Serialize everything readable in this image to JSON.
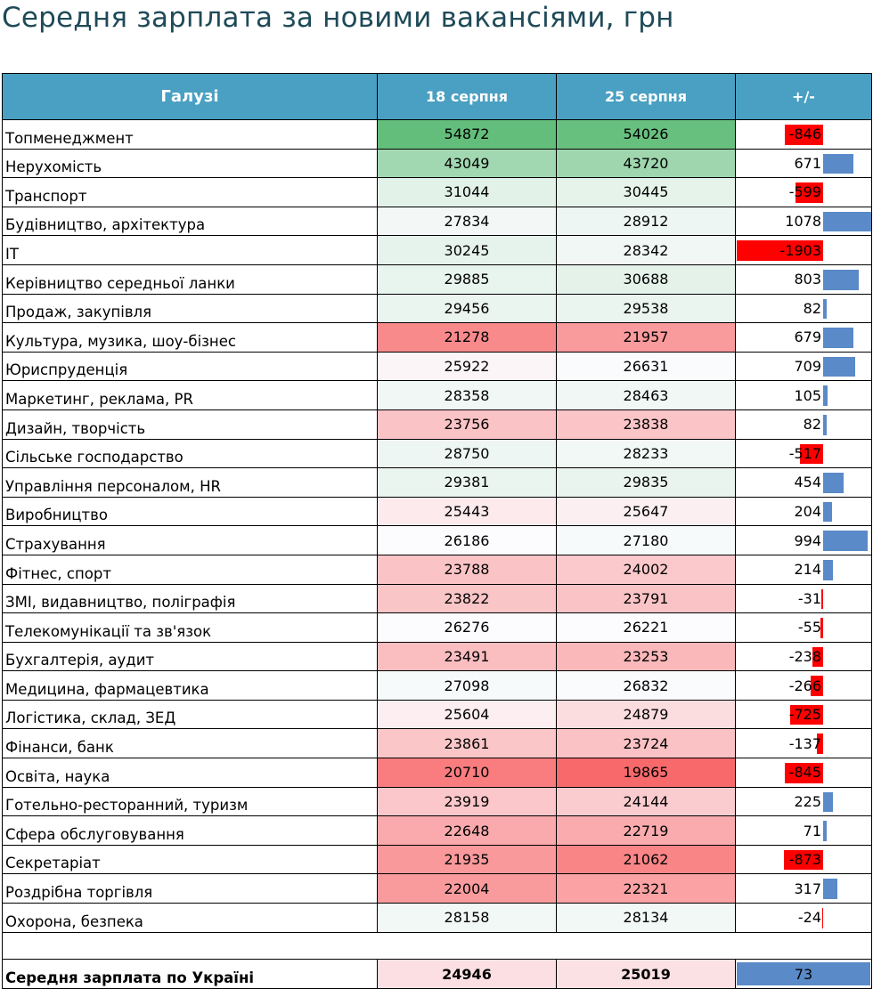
{
  "title": "Середня зарплата за новими вакансіями, грн",
  "colors": {
    "title": "#1f4a58",
    "header_bg": "#4aa0c2",
    "header_text": "#ffffff",
    "high": "#63be7b",
    "mid": "#fcfcff",
    "low": "#f8696b",
    "bar_positive": "#5a8ac8",
    "bar_negative": "#ff0000"
  },
  "chart_data": {
    "type": "table",
    "columns": [
      "Галузі",
      "18 серпня",
      "25 серпня",
      "+/-"
    ],
    "rows": [
      {
        "industry": "Топменеджмент",
        "aug18": 54872,
        "aug25": 54026,
        "delta": -846
      },
      {
        "industry": "Нерухомість",
        "aug18": 43049,
        "aug25": 43720,
        "delta": 671
      },
      {
        "industry": "Транспорт",
        "aug18": 31044,
        "aug25": 30445,
        "delta": -599
      },
      {
        "industry": "Будівництво, архітектура",
        "aug18": 27834,
        "aug25": 28912,
        "delta": 1078
      },
      {
        "industry": "IT",
        "aug18": 30245,
        "aug25": 28342,
        "delta": -1903
      },
      {
        "industry": "Керівництво середньої ланки",
        "aug18": 29885,
        "aug25": 30688,
        "delta": 803
      },
      {
        "industry": "Продаж, закупівля",
        "aug18": 29456,
        "aug25": 29538,
        "delta": 82
      },
      {
        "industry": "Культура, музика, шоу-бізнес",
        "aug18": 21278,
        "aug25": 21957,
        "delta": 679
      },
      {
        "industry": "Юриспруденція",
        "aug18": 25922,
        "aug25": 26631,
        "delta": 709
      },
      {
        "industry": "Маркетинг, реклама, PR",
        "aug18": 28358,
        "aug25": 28463,
        "delta": 105
      },
      {
        "industry": "Дизайн, творчість",
        "aug18": 23756,
        "aug25": 23838,
        "delta": 82
      },
      {
        "industry": "Сільське господарство",
        "aug18": 28750,
        "aug25": 28233,
        "delta": -517
      },
      {
        "industry": "Управління персоналом, HR",
        "aug18": 29381,
        "aug25": 29835,
        "delta": 454
      },
      {
        "industry": "Виробництво",
        "aug18": 25443,
        "aug25": 25647,
        "delta": 204
      },
      {
        "industry": "Страхування",
        "aug18": 26186,
        "aug25": 27180,
        "delta": 994
      },
      {
        "industry": "Фітнес, спорт",
        "aug18": 23788,
        "aug25": 24002,
        "delta": 214
      },
      {
        "industry": "ЗМІ, видавництво, поліграфія",
        "aug18": 23822,
        "aug25": 23791,
        "delta": -31
      },
      {
        "industry": "Телекомунікації та зв'язок",
        "aug18": 26276,
        "aug25": 26221,
        "delta": -55
      },
      {
        "industry": "Бухгалтерія, аудит",
        "aug18": 23491,
        "aug25": 23253,
        "delta": -238
      },
      {
        "industry": "Медицина, фармацевтика",
        "aug18": 27098,
        "aug25": 26832,
        "delta": -266
      },
      {
        "industry": "Логістика, склад, ЗЕД",
        "aug18": 25604,
        "aug25": 24879,
        "delta": -725
      },
      {
        "industry": "Фінанси, банк",
        "aug18": 23861,
        "aug25": 23724,
        "delta": -137
      },
      {
        "industry": "Освіта, наука",
        "aug18": 20710,
        "aug25": 19865,
        "delta": -845
      },
      {
        "industry": "Готельно-ресторанний, туризм",
        "aug18": 23919,
        "aug25": 24144,
        "delta": 225
      },
      {
        "industry": "Сфера обслуговування",
        "aug18": 22648,
        "aug25": 22719,
        "delta": 71
      },
      {
        "industry": "Секретаріат",
        "aug18": 21935,
        "aug25": 21062,
        "delta": -873
      },
      {
        "industry": "Роздрібна торгівля",
        "aug18": 22004,
        "aug25": 22321,
        "delta": 317
      },
      {
        "industry": "Охорона, безпека",
        "aug18": 28158,
        "aug25": 28134,
        "delta": -24
      }
    ],
    "total": {
      "label": "Середня зарплата по Україні",
      "aug18": 24946,
      "aug25": 25019,
      "delta": 73
    }
  }
}
